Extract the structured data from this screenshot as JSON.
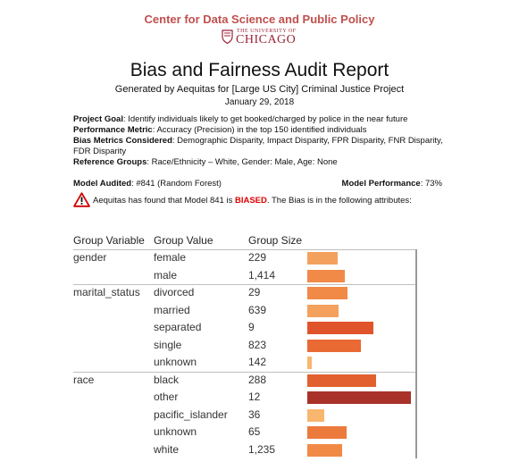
{
  "header": {
    "center_name": "Center for Data Science and Public Policy",
    "university_small": "THE UNIVERSITY OF",
    "university_big": "CHICAGO",
    "title": "Bias and Fairness Audit Report",
    "subtitle": "Generated by Aequitas for [Large US City] Criminal Justice Project",
    "date": "January 29, 2018"
  },
  "info": {
    "goal_label": "Project Goal",
    "goal_text": ": Identify individuals likely to get booked/charged by police in the near future",
    "perf_label": "Performance Metric",
    "perf_text": ": Accuracy (Precision) in the top 150 identified individuals",
    "bias_label": "Bias Metrics Considered",
    "bias_text": ": Demographic Disparity, Impact Disparity, FPR Disparity, FNR Disparity, FDR Disparity",
    "ref_label": "Reference Groups",
    "ref_text": ": Race/Ethnicity – White, Gender: Male, Age: None"
  },
  "model": {
    "audited_label": "Model Audited",
    "audited_text": ": #841 (Random Forest)",
    "performance_label": "Model Performance",
    "performance_text": ": 73%"
  },
  "warning": {
    "prefix": "Aequitas has found that Model 841 is ",
    "biased": "BIASED",
    "suffix": ". The Bias is in the following attributes:"
  },
  "table": {
    "headers": {
      "variable": "Group Variable",
      "value": "Group Value",
      "size": "Group Size"
    },
    "rows": [
      {
        "variable": "gender",
        "value": "female",
        "size": "229",
        "disparity": 0.29,
        "color": "#f4a15e"
      },
      {
        "variable": "",
        "value": "male",
        "size": "1,414",
        "disparity": 0.36,
        "color": "#f18a47"
      },
      {
        "variable": "marital_status",
        "value": "divorced",
        "size": "29",
        "disparity": 0.39,
        "color": "#f18a47"
      },
      {
        "variable": "",
        "value": "married",
        "size": "639",
        "disparity": 0.3,
        "color": "#f4a15e"
      },
      {
        "variable": "",
        "value": "separated",
        "size": "9",
        "disparity": 0.64,
        "color": "#e0542c"
      },
      {
        "variable": "",
        "value": "single",
        "size": "823",
        "disparity": 0.52,
        "color": "#e96a33"
      },
      {
        "variable": "",
        "value": "unknown",
        "size": "142",
        "disparity": 0.04,
        "color": "#f9b66e"
      },
      {
        "variable": "race",
        "value": "black",
        "size": "288",
        "disparity": 0.66,
        "color": "#e2602f"
      },
      {
        "variable": "",
        "value": "other",
        "size": "12",
        "disparity": 1.0,
        "color": "#a8322a"
      },
      {
        "variable": "",
        "value": "pacific_islander",
        "size": "36",
        "disparity": 0.16,
        "color": "#f9b66e"
      },
      {
        "variable": "",
        "value": "unknown",
        "size": "65",
        "disparity": 0.38,
        "color": "#ec7a3c"
      },
      {
        "variable": "",
        "value": "white",
        "size": "1,235",
        "disparity": 0.34,
        "color": "#f18a47"
      }
    ]
  }
}
